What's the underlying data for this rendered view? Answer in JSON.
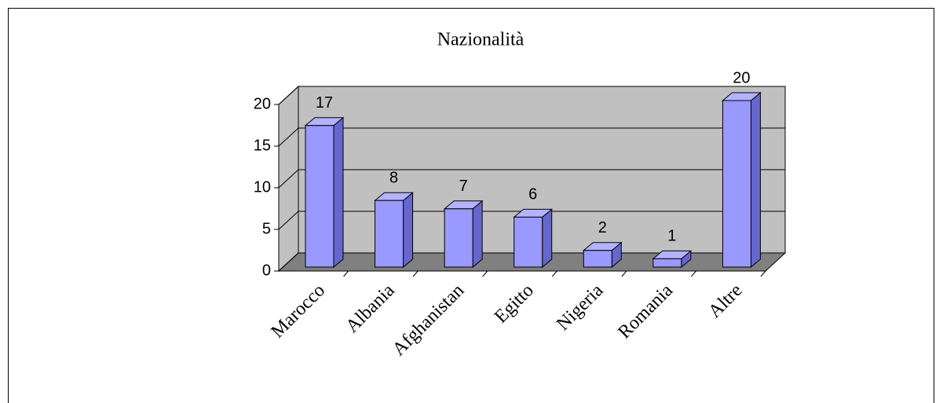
{
  "chart_data": {
    "type": "bar",
    "title": "Nazionalità",
    "categories": [
      "Marocco",
      "Albania",
      "Afghanistan",
      "Egitto",
      "Nigeria",
      "Romania",
      "Altre"
    ],
    "values": [
      17,
      8,
      7,
      6,
      2,
      1,
      20
    ],
    "color": "#9999ff",
    "ylim": [
      0,
      20
    ],
    "yticks": [
      0,
      5,
      10,
      15,
      20
    ],
    "grid": true
  }
}
